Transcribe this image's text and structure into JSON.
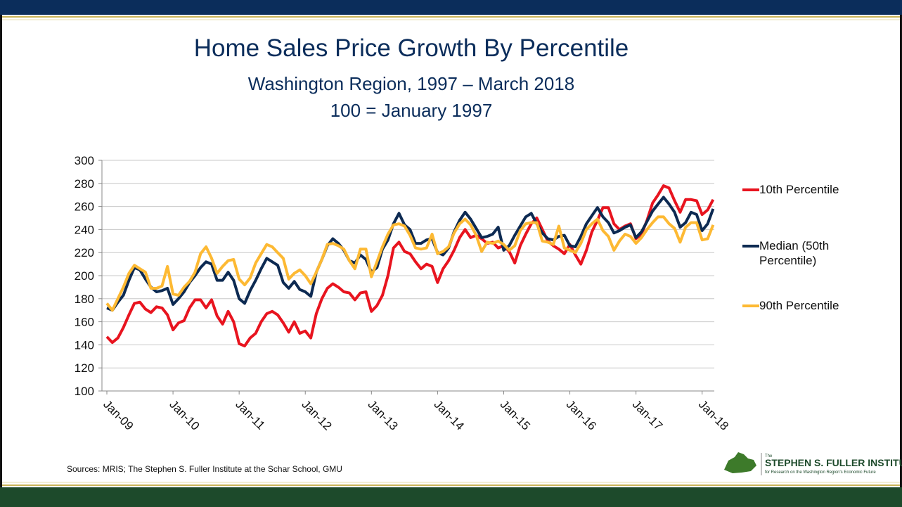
{
  "chart_data": {
    "type": "line",
    "title": "Home Sales Price Growth By Percentile",
    "subtitle": [
      "Washington Region, 1997 – March 2018",
      "100 = January 1997"
    ],
    "source": "Sources: MRIS; The Stephen S. Fuller Institute at the Schar School, GMU",
    "categories": [
      "Jan-09",
      null,
      null,
      null,
      null,
      null,
      null,
      null,
      null,
      null,
      null,
      null,
      "Jan-10",
      null,
      null,
      null,
      null,
      null,
      null,
      null,
      null,
      null,
      null,
      null,
      "Jan-11",
      null,
      null,
      null,
      null,
      null,
      null,
      null,
      null,
      null,
      null,
      null,
      "Jan-12",
      null,
      null,
      null,
      null,
      null,
      null,
      null,
      null,
      null,
      null,
      null,
      "Jan-13",
      null,
      null,
      null,
      null,
      null,
      null,
      null,
      null,
      null,
      null,
      null,
      "Jan-14",
      null,
      null,
      null,
      null,
      null,
      null,
      null,
      null,
      null,
      null,
      null,
      "Jan-15",
      null,
      null,
      null,
      null,
      null,
      null,
      null,
      null,
      null,
      null,
      null,
      "Jan-16",
      null,
      null,
      null,
      null,
      null,
      null,
      null,
      null,
      null,
      null,
      null,
      "Jan-17",
      null,
      null,
      null,
      null,
      null,
      null,
      null,
      null,
      null,
      null,
      null,
      "Jan-18",
      null,
      null
    ],
    "series": [
      {
        "name": "10th Percentile",
        "color": "#e8141f",
        "values": [
          147,
          142,
          146,
          155,
          166,
          176,
          177,
          171,
          168,
          173,
          172,
          166,
          153,
          159,
          161,
          172,
          179,
          179,
          172,
          179,
          165,
          158,
          169,
          160,
          141,
          139,
          146,
          150,
          160,
          167,
          169,
          166,
          159,
          151,
          160,
          150,
          152,
          146,
          167,
          180,
          189,
          193,
          190,
          186,
          185,
          179,
          185,
          186,
          169,
          174,
          183,
          200,
          224,
          229,
          221,
          219,
          212,
          206,
          210,
          208,
          194,
          206,
          213,
          222,
          233,
          240,
          233,
          235,
          232,
          228,
          229,
          224,
          226,
          221,
          211,
          226,
          236,
          245,
          250,
          240,
          230,
          226,
          223,
          219,
          227,
          218,
          210,
          222,
          238,
          248,
          259,
          259,
          245,
          240,
          243,
          245,
          232,
          236,
          248,
          263,
          270,
          278,
          276,
          265,
          255,
          266,
          266,
          265,
          253,
          257,
          266
        ]
      },
      {
        "name": "Median (50th Percentile)",
        "color": "#0d2a52",
        "values": [
          172,
          170,
          177,
          183,
          196,
          207,
          205,
          197,
          190,
          186,
          187,
          189,
          175,
          180,
          186,
          194,
          200,
          207,
          212,
          210,
          196,
          196,
          203,
          196,
          180,
          176,
          187,
          196,
          206,
          215,
          212,
          209,
          194,
          189,
          195,
          188,
          186,
          182,
          203,
          214,
          226,
          232,
          228,
          222,
          213,
          211,
          218,
          214,
          203,
          207,
          223,
          231,
          245,
          254,
          244,
          240,
          228,
          228,
          231,
          232,
          220,
          218,
          224,
          238,
          248,
          255,
          249,
          241,
          233,
          234,
          236,
          242,
          222,
          226,
          235,
          243,
          251,
          254,
          245,
          237,
          232,
          231,
          234,
          235,
          226,
          225,
          234,
          245,
          252,
          259,
          251,
          246,
          237,
          239,
          242,
          244,
          233,
          238,
          247,
          256,
          262,
          268,
          262,
          255,
          242,
          246,
          255,
          253,
          239,
          245,
          258
        ]
      },
      {
        "name": "90th Percentile",
        "color": "#fdb933",
        "values": [
          176,
          170,
          180,
          190,
          202,
          209,
          206,
          203,
          189,
          189,
          191,
          208,
          184,
          183,
          190,
          195,
          203,
          219,
          225,
          215,
          202,
          208,
          213,
          214,
          197,
          192,
          198,
          211,
          219,
          227,
          225,
          220,
          215,
          197,
          202,
          205,
          200,
          193,
          203,
          214,
          227,
          228,
          226,
          223,
          213,
          206,
          223,
          223,
          199,
          212,
          225,
          236,
          244,
          245,
          243,
          235,
          224,
          223,
          224,
          236,
          219,
          221,
          225,
          237,
          245,
          249,
          244,
          235,
          221,
          229,
          228,
          230,
          227,
          222,
          226,
          239,
          245,
          246,
          246,
          230,
          229,
          227,
          243,
          224,
          222,
          220,
          228,
          240,
          245,
          249,
          239,
          234,
          222,
          230,
          236,
          234,
          228,
          233,
          240,
          246,
          251,
          251,
          245,
          241,
          229,
          242,
          246,
          246,
          231,
          232,
          244
        ]
      }
    ],
    "ylim": [
      100,
      300
    ],
    "yticks": [
      100,
      120,
      140,
      160,
      180,
      200,
      220,
      240,
      260,
      280,
      300
    ],
    "grid": true,
    "legend": "right"
  },
  "logo": {
    "small": "The",
    "name": "STEPHEN S. FULLER INSTITUTE",
    "tagline": "for Research on the Washington Region's Economic Future"
  }
}
